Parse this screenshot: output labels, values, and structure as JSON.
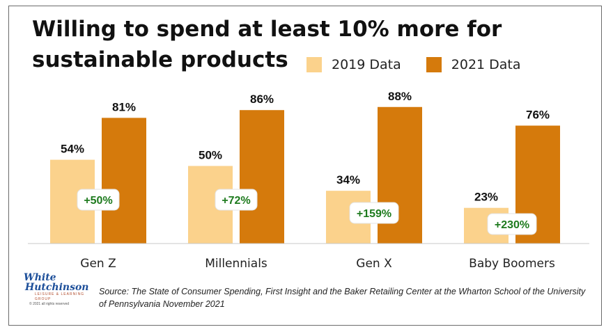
{
  "title": "Willing to spend at least 10% more for sustainable products",
  "legend": {
    "series_2019": "2019 Data",
    "series_2021": "2021 Data"
  },
  "chart_data": {
    "type": "bar",
    "categories": [
      "Gen Z",
      "Millennials",
      "Gen X",
      "Baby Boomers"
    ],
    "series": [
      {
        "name": "2019 Data",
        "values": [
          54,
          50,
          34,
          23
        ],
        "labels": [
          "54%",
          "50%",
          "34%",
          "23%"
        ],
        "color": "#fbd28c"
      },
      {
        "name": "2021 Data",
        "values": [
          81,
          86,
          88,
          76
        ],
        "labels": [
          "81%",
          "86%",
          "88%",
          "76%"
        ],
        "color": "#d57a0c"
      }
    ],
    "annotations": [
      "+50%",
      "+72%",
      "+159%",
      "+230%"
    ],
    "annotation_color": "#1d7a1d",
    "ylim": [
      0,
      100
    ],
    "grid": false,
    "legend_position": "top-right",
    "xlabel": "",
    "ylabel": ""
  },
  "logo": {
    "line1": "White",
    "line2": "Hutchinson",
    "tagline": "Leisure & Learning Group",
    "copyright": "© 2021 all rights reserved"
  },
  "source_note": "Source: The State of Consumer Spending, First Insight and the Baker Retailing Center at the Wharton School of the University of Pennsylvania November 2021"
}
